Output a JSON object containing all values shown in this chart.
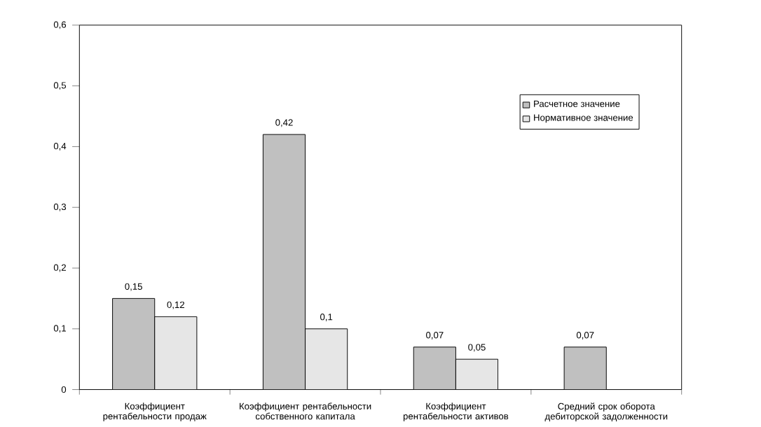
{
  "chart_data": {
    "type": "bar",
    "categories": [
      "Коэффициент рентабельности продаж",
      "Коэффициент рентабельности собственного капитала",
      "Коэффициент рентабельности активов",
      "Средний срок оборота дебиторской задолженности"
    ],
    "series": [
      {
        "name": "Расчетное значение",
        "color": "#c0c0c0",
        "values": [
          0.15,
          0.42,
          0.07,
          0.07
        ],
        "value_labels": [
          "0,15",
          "0,42",
          "0,07",
          "0,07"
        ]
      },
      {
        "name": "Нормативное значение",
        "color": "#e6e6e6",
        "values": [
          0.12,
          0.1,
          0.05,
          null
        ],
        "value_labels": [
          "0,12",
          "0,1",
          "0,05",
          null
        ]
      }
    ],
    "ylim": [
      0,
      0.6
    ],
    "yticks": [
      {
        "value": 0,
        "label": "0"
      },
      {
        "value": 0.1,
        "label": "0,1"
      },
      {
        "value": 0.2,
        "label": "0,2"
      },
      {
        "value": 0.3,
        "label": "0,3"
      },
      {
        "value": 0.4,
        "label": "0,4"
      },
      {
        "value": 0.5,
        "label": "0,5"
      },
      {
        "value": 0.6,
        "label": "0,6"
      }
    ],
    "legend": "top right",
    "grid": false
  }
}
